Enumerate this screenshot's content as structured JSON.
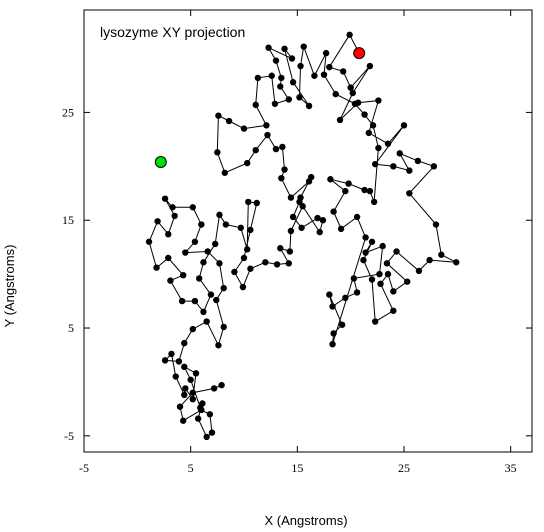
{
  "chart_data": {
    "type": "scatter",
    "title": "lysozyme XY projection",
    "xlabel": "X (Angstroms)",
    "ylabel": "Y (Angstroms)",
    "xlim": [
      -5,
      37
    ],
    "ylim": [
      -6.5,
      34.5
    ],
    "xticks": [
      -5,
      5,
      15,
      25,
      35
    ],
    "xtick_labels": [
      "-5",
      "5",
      "15",
      "25",
      "35"
    ],
    "yticks": [
      -5,
      5,
      15,
      25
    ],
    "ytick_labels": [
      "-5",
      "5",
      "15",
      "25"
    ],
    "grid": false,
    "connected": true,
    "series": [
      {
        "points": [
          [
            20.8,
            30.5
          ],
          [
            19.9,
            32.2
          ],
          [
            18.0,
            29.2
          ],
          [
            19.3,
            28.8
          ],
          [
            20.0,
            27.3
          ],
          [
            21.8,
            29.3
          ],
          [
            20.2,
            26.8
          ],
          [
            19.0,
            24.3
          ],
          [
            20.7,
            25.9
          ],
          [
            22.6,
            26.1
          ],
          [
            21.7,
            23.1
          ],
          [
            23.5,
            22.1
          ],
          [
            25.0,
            23.8
          ],
          [
            22.3,
            20.2
          ],
          [
            24.0,
            20.0
          ],
          [
            25.5,
            19.6
          ],
          [
            24.6,
            21.2
          ],
          [
            26.3,
            20.5
          ],
          [
            27.8,
            20.0
          ],
          [
            25.5,
            17.5
          ],
          [
            28.0,
            14.6
          ],
          [
            28.5,
            11.8
          ],
          [
            29.9,
            11.1
          ],
          [
            27.4,
            11.3
          ],
          [
            26.4,
            10.3
          ],
          [
            24.3,
            12.1
          ],
          [
            23.4,
            11.0
          ],
          [
            25.3,
            9.3
          ],
          [
            24.0,
            8.4
          ],
          [
            23.5,
            10.0
          ],
          [
            22.8,
            9.1
          ],
          [
            24.0,
            6.6
          ],
          [
            22.3,
            5.6
          ],
          [
            22.0,
            9.5
          ],
          [
            21.2,
            11.3
          ],
          [
            22.0,
            13.0
          ],
          [
            21.4,
            12.0
          ],
          [
            23.0,
            12.6
          ],
          [
            22.7,
            10.0
          ],
          [
            20.3,
            9.6
          ],
          [
            20.6,
            8.3
          ],
          [
            19.5,
            7.8
          ],
          [
            18.3,
            7.0
          ],
          [
            18.0,
            8.1
          ],
          [
            19.2,
            5.3
          ],
          [
            18.4,
            4.5
          ],
          [
            18.3,
            3.5
          ],
          [
            21.4,
            13.4
          ],
          [
            20.6,
            15.3
          ],
          [
            19.1,
            14.2
          ],
          [
            18.4,
            15.8
          ],
          [
            19.5,
            17.7
          ],
          [
            18.1,
            18.8
          ],
          [
            19.8,
            18.4
          ],
          [
            21.3,
            17.8
          ],
          [
            21.8,
            17.7
          ],
          [
            22.2,
            16.7
          ],
          [
            22.6,
            21.7
          ],
          [
            22.1,
            23.8
          ],
          [
            21.3,
            24.8
          ],
          [
            20.4,
            25.8
          ],
          [
            18.6,
            26.7
          ],
          [
            17.5,
            28.5
          ],
          [
            17.7,
            30.5
          ],
          [
            16.6,
            28.4
          ],
          [
            15.6,
            31.1
          ],
          [
            15.3,
            29.3
          ],
          [
            15.2,
            26.4
          ],
          [
            16.1,
            25.6
          ],
          [
            14.6,
            27.8
          ],
          [
            13.8,
            30.9
          ],
          [
            14.5,
            30.0
          ],
          [
            12.3,
            31.0
          ],
          [
            13.0,
            29.8
          ],
          [
            13.5,
            28.2
          ],
          [
            13.4,
            27.4
          ],
          [
            14.2,
            26.2
          ],
          [
            12.9,
            25.8
          ],
          [
            12.6,
            28.4
          ],
          [
            11.3,
            28.2
          ],
          [
            11.1,
            25.7
          ],
          [
            12.1,
            23.8
          ],
          [
            10.0,
            23.5
          ],
          [
            8.6,
            24.2
          ],
          [
            7.6,
            24.7
          ],
          [
            7.5,
            21.3
          ],
          [
            8.2,
            19.4
          ],
          [
            10.3,
            20.3
          ],
          [
            11.1,
            21.5
          ],
          [
            12.2,
            22.9
          ],
          [
            13.0,
            21.6
          ],
          [
            13.6,
            21.8
          ],
          [
            13.8,
            19.7
          ],
          [
            13.5,
            18.9
          ],
          [
            14.4,
            17.1
          ],
          [
            16.1,
            18.6
          ],
          [
            16.3,
            19.0
          ],
          [
            15.3,
            17.1
          ],
          [
            15.2,
            16.7
          ],
          [
            14.6,
            15.3
          ],
          [
            15.4,
            14.3
          ],
          [
            16.9,
            15.2
          ],
          [
            17.4,
            15.0
          ],
          [
            17.1,
            13.9
          ],
          [
            15.5,
            16.3
          ],
          [
            14.4,
            14.0
          ],
          [
            14.3,
            12.1
          ],
          [
            13.4,
            12.4
          ],
          [
            14.2,
            11.0
          ],
          [
            13.1,
            10.9
          ],
          [
            12.0,
            11.1
          ],
          [
            10.6,
            10.5
          ],
          [
            9.9,
            8.8
          ],
          [
            9.1,
            10.2
          ],
          [
            10.0,
            11.5
          ],
          [
            10.6,
            14.1
          ],
          [
            11.2,
            16.6
          ],
          [
            10.4,
            16.7
          ],
          [
            10.3,
            12.3
          ],
          [
            9.7,
            14.3
          ],
          [
            8.3,
            14.6
          ],
          [
            7.7,
            15.5
          ],
          [
            7.3,
            12.8
          ],
          [
            6.2,
            11.1
          ],
          [
            5.8,
            9.6
          ],
          [
            6.9,
            8.1
          ],
          [
            6.2,
            6.5
          ],
          [
            5.4,
            7.5
          ],
          [
            4.2,
            7.5
          ],
          [
            3.1,
            9.4
          ],
          [
            4.3,
            9.9
          ],
          [
            2.9,
            11.5
          ],
          [
            1.8,
            10.6
          ],
          [
            1.1,
            13.0
          ],
          [
            1.9,
            14.9
          ],
          [
            2.9,
            13.7
          ],
          [
            3.5,
            15.4
          ],
          [
            2.6,
            17.0
          ],
          [
            3.3,
            16.2
          ],
          [
            5.2,
            16.2
          ],
          [
            6.0,
            14.6
          ],
          [
            5.4,
            13.0
          ],
          [
            4.5,
            12.0
          ],
          [
            6.6,
            12.1
          ],
          [
            7.7,
            11.0
          ],
          [
            8.1,
            8.7
          ],
          [
            7.4,
            7.6
          ],
          [
            8.1,
            5.1
          ],
          [
            7.6,
            3.4
          ],
          [
            6.5,
            5.6
          ],
          [
            5.2,
            4.9
          ],
          [
            4.4,
            3.6
          ],
          [
            3.9,
            1.9
          ],
          [
            2.6,
            2.0
          ],
          [
            3.2,
            2.6
          ],
          [
            3.6,
            0.5
          ],
          [
            4.4,
            -1.2
          ],
          [
            4.5,
            -0.6
          ],
          [
            5.2,
            -1.6
          ],
          [
            5.5,
            0.8
          ],
          [
            4.4,
            1.4
          ],
          [
            5.0,
            0.2
          ],
          [
            5.9,
            -2.4
          ],
          [
            6.1,
            -2.0
          ],
          [
            5.7,
            -3.4
          ],
          [
            6.5,
            -5.1
          ],
          [
            7.0,
            -4.7
          ],
          [
            6.8,
            -3.0
          ],
          [
            6.0,
            -2.6
          ],
          [
            4.3,
            -3.6
          ],
          [
            4.0,
            -2.3
          ],
          [
            5.2,
            -1.0
          ],
          [
            7.2,
            -0.6
          ],
          [
            7.9,
            -0.3
          ]
        ]
      }
    ],
    "marked_points": [
      {
        "point": [
          20.8,
          30.5
        ],
        "color": "#ff0000"
      },
      {
        "point": [
          2.2,
          20.4
        ],
        "color": "#00e000"
      }
    ],
    "colors": {
      "line": "#000000",
      "point": "#000000",
      "frame": "#000000"
    }
  }
}
